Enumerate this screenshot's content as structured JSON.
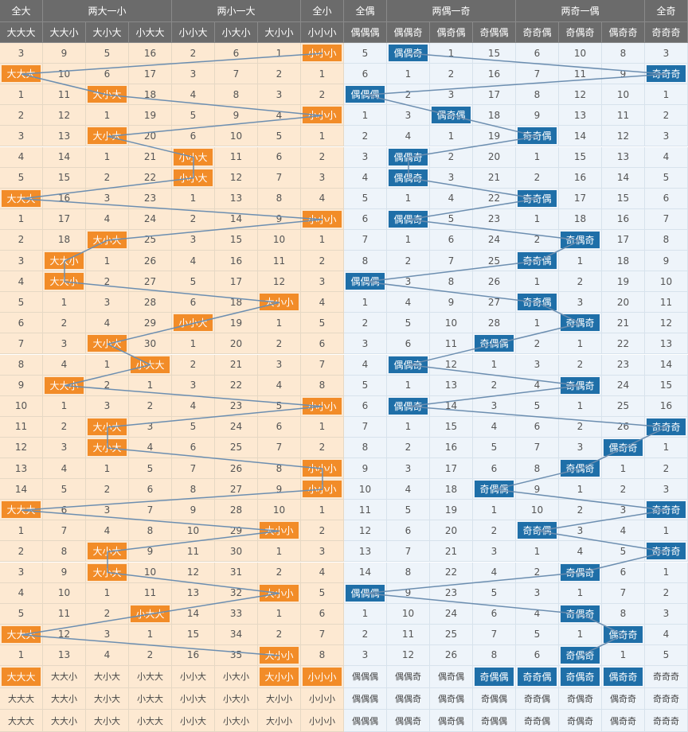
{
  "header_groups": [
    "全大",
    "两大一小",
    "两小一大",
    "全小",
    "全偶",
    "两偶一奇",
    "两奇一偶",
    "全奇"
  ],
  "columns": [
    "大大大",
    "大大小",
    "大小大",
    "小大大",
    "小小大",
    "小大小",
    "大小小",
    "小小小",
    "偶偶偶",
    "偶偶奇",
    "偶奇偶",
    "奇偶偶",
    "奇奇偶",
    "奇偶奇",
    "偶奇奇",
    "奇奇奇"
  ],
  "rows": [
    [
      3,
      9,
      5,
      16,
      2,
      6,
      1,
      "小小小",
      5,
      "偶偶奇",
      1,
      15,
      6,
      10,
      8,
      3
    ],
    [
      "大大大",
      10,
      6,
      17,
      3,
      7,
      2,
      1,
      6,
      1,
      2,
      16,
      7,
      11,
      9,
      "奇奇奇"
    ],
    [
      1,
      11,
      "大小大",
      18,
      4,
      8,
      3,
      2,
      "偶偶偶",
      2,
      3,
      17,
      8,
      12,
      10,
      1
    ],
    [
      2,
      12,
      1,
      19,
      5,
      9,
      4,
      "小小小",
      1,
      3,
      "偶奇偶",
      18,
      9,
      13,
      11,
      2
    ],
    [
      3,
      13,
      "大小大",
      20,
      6,
      10,
      5,
      1,
      2,
      4,
      1,
      19,
      "奇奇偶",
      14,
      12,
      3
    ],
    [
      4,
      14,
      1,
      21,
      "小小大",
      11,
      6,
      2,
      3,
      "偶偶奇",
      2,
      20,
      1,
      15,
      13,
      4
    ],
    [
      5,
      15,
      2,
      22,
      "小小大",
      12,
      7,
      3,
      4,
      "偶偶奇",
      3,
      21,
      2,
      16,
      14,
      5
    ],
    [
      "大大大",
      16,
      3,
      23,
      1,
      13,
      8,
      4,
      5,
      1,
      4,
      22,
      "奇奇偶",
      17,
      15,
      6
    ],
    [
      1,
      17,
      4,
      24,
      2,
      14,
      9,
      "小小小",
      6,
      "偶偶奇",
      5,
      23,
      1,
      18,
      16,
      7
    ],
    [
      2,
      18,
      "大小大",
      25,
      3,
      15,
      10,
      1,
      7,
      1,
      6,
      24,
      2,
      "奇偶奇",
      17,
      8
    ],
    [
      3,
      "大大小",
      1,
      26,
      4,
      16,
      11,
      2,
      8,
      2,
      7,
      25,
      "奇奇偶",
      1,
      18,
      9
    ],
    [
      4,
      "大大小",
      2,
      27,
      5,
      17,
      12,
      3,
      "偶偶偶",
      3,
      8,
      26,
      1,
      2,
      19,
      10
    ],
    [
      5,
      1,
      3,
      28,
      6,
      18,
      "大小小",
      4,
      1,
      4,
      9,
      27,
      "奇奇偶",
      3,
      20,
      11
    ],
    [
      6,
      2,
      4,
      29,
      "小小大",
      19,
      1,
      5,
      2,
      5,
      10,
      28,
      1,
      "奇偶奇",
      21,
      12
    ],
    [
      7,
      3,
      "大小大",
      30,
      1,
      20,
      2,
      6,
      3,
      6,
      11,
      "奇偶偶",
      2,
      1,
      22,
      13
    ],
    [
      8,
      4,
      1,
      "小大大",
      2,
      21,
      3,
      7,
      4,
      "偶偶奇",
      12,
      1,
      3,
      2,
      23,
      14
    ],
    [
      9,
      "大大小",
      2,
      1,
      3,
      22,
      4,
      8,
      5,
      1,
      13,
      2,
      4,
      "奇偶奇",
      24,
      15
    ],
    [
      10,
      1,
      3,
      2,
      4,
      23,
      5,
      "小小小",
      6,
      "偶偶奇",
      14,
      3,
      5,
      1,
      25,
      16
    ],
    [
      11,
      2,
      "大小大",
      3,
      5,
      24,
      6,
      1,
      7,
      1,
      15,
      4,
      6,
      2,
      26,
      "奇奇奇"
    ],
    [
      12,
      3,
      "大小大",
      4,
      6,
      25,
      7,
      2,
      8,
      2,
      16,
      5,
      7,
      3,
      "偶奇奇",
      1
    ],
    [
      13,
      4,
      1,
      5,
      7,
      26,
      8,
      "小小小",
      9,
      3,
      17,
      6,
      8,
      "奇偶奇",
      1,
      2
    ],
    [
      14,
      5,
      2,
      6,
      8,
      27,
      9,
      "小小小",
      10,
      4,
      18,
      "奇偶偶",
      9,
      1,
      2,
      3
    ],
    [
      "大大大",
      6,
      3,
      7,
      9,
      28,
      10,
      1,
      11,
      5,
      19,
      1,
      10,
      2,
      3,
      "奇奇奇"
    ],
    [
      1,
      7,
      4,
      8,
      10,
      29,
      "大小小",
      2,
      12,
      6,
      20,
      2,
      "奇奇偶",
      3,
      4,
      1
    ],
    [
      2,
      8,
      "大小大",
      9,
      11,
      30,
      1,
      3,
      13,
      7,
      21,
      3,
      1,
      4,
      5,
      "奇奇奇"
    ],
    [
      3,
      9,
      "大小大",
      10,
      12,
      31,
      2,
      4,
      14,
      8,
      22,
      4,
      2,
      "奇偶奇",
      6,
      1
    ],
    [
      4,
      10,
      1,
      11,
      13,
      32,
      "大小小",
      5,
      "偶偶偶",
      9,
      23,
      5,
      3,
      1,
      7,
      2
    ],
    [
      5,
      11,
      2,
      "小大大",
      14,
      33,
      1,
      6,
      1,
      10,
      24,
      6,
      4,
      "奇偶奇",
      8,
      3
    ],
    [
      "大大大",
      12,
      3,
      1,
      15,
      34,
      2,
      7,
      2,
      11,
      25,
      7,
      5,
      1,
      "偶奇奇",
      4
    ],
    [
      1,
      13,
      4,
      2,
      16,
      35,
      "大小小",
      8,
      3,
      12,
      26,
      8,
      6,
      "奇偶奇",
      1,
      5
    ]
  ],
  "summary_rows": [
    {
      "labels": [
        "大大大",
        "大大小",
        "大小大",
        "小大大",
        "小小大",
        "小大小",
        "大小小",
        "小小小",
        "偶偶偶",
        "偶偶奇",
        "偶奇偶",
        "奇偶偶",
        "奇奇偶",
        "奇偶奇",
        "偶奇奇",
        "奇奇奇"
      ],
      "highlight": [
        0,
        6,
        7,
        11,
        12,
        13,
        14
      ]
    },
    {
      "labels": [
        "大大大",
        "大大小",
        "大小大",
        "小大大",
        "小小大",
        "小大小",
        "大小小",
        "小小小",
        "偶偶偶",
        "偶偶奇",
        "偶奇偶",
        "奇偶偶",
        "奇奇偶",
        "奇偶奇",
        "偶奇奇",
        "奇奇奇"
      ],
      "highlight": []
    },
    {
      "labels": [
        "大大大",
        "大大小",
        "大小大",
        "小大大",
        "小小大",
        "小大小",
        "大小小",
        "小小小",
        "偶偶偶",
        "偶偶奇",
        "偶奇偶",
        "奇偶偶",
        "奇奇偶",
        "奇偶奇",
        "偶奇奇",
        "奇奇奇"
      ],
      "highlight": []
    }
  ],
  "colors": {
    "big_small_accent": "#f28c28",
    "odd_even_accent": "#1f6fa8",
    "line": "#6c8eb0"
  }
}
